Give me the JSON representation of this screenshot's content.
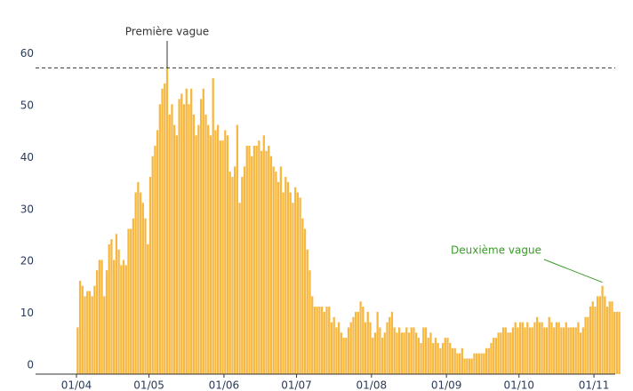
{
  "chart_data": {
    "type": "bar",
    "color": "#f7b842",
    "categories": [
      "01/04",
      null,
      null,
      null,
      null,
      null,
      null,
      null,
      null,
      null,
      null,
      null,
      null,
      null,
      null,
      null,
      null,
      null,
      null,
      null,
      null,
      null,
      null,
      null,
      null,
      null,
      null,
      null,
      null,
      null,
      "01/05",
      null,
      null,
      null,
      null,
      null,
      null,
      null,
      null,
      null,
      null,
      null,
      null,
      null,
      null,
      null,
      null,
      null,
      null,
      null,
      null,
      null,
      null,
      null,
      null,
      null,
      null,
      null,
      null,
      null,
      null,
      "01/06",
      null,
      null,
      null,
      null,
      null,
      null,
      null,
      null,
      null,
      null,
      null,
      null,
      null,
      null,
      null,
      null,
      null,
      null,
      null,
      null,
      null,
      null,
      null,
      null,
      null,
      null,
      null,
      null,
      null,
      "01/07",
      null,
      null,
      null,
      null,
      null,
      null,
      null,
      null,
      null,
      null,
      null,
      null,
      null,
      null,
      null,
      null,
      null,
      null,
      null,
      null,
      null,
      null,
      null,
      null,
      null,
      null,
      null,
      null,
      null,
      null,
      "01/08",
      null,
      null,
      null,
      null,
      null,
      null,
      null,
      null,
      null,
      null,
      null,
      null,
      null,
      null,
      null,
      null,
      null,
      null,
      null,
      null,
      null,
      null,
      null,
      null,
      null,
      null,
      null,
      null,
      null,
      null,
      "01/09",
      null,
      null,
      null,
      null,
      null,
      null,
      null,
      null,
      null,
      null,
      null,
      null,
      null,
      null,
      null,
      null,
      null,
      null,
      null,
      null,
      null,
      null,
      null,
      null,
      null,
      null,
      null,
      null,
      null,
      "01/10",
      null,
      null,
      null,
      null,
      null,
      null,
      null,
      null,
      null,
      null,
      null,
      null,
      null,
      null,
      null,
      null,
      null,
      null,
      null,
      null,
      null,
      null,
      null,
      null,
      null,
      null,
      null,
      null,
      null,
      null,
      "01/11",
      null,
      null,
      null,
      null,
      null,
      null,
      null,
      null,
      null,
      null
    ],
    "values": [
      9,
      18,
      17,
      15,
      16,
      16,
      15,
      17,
      20,
      22,
      22,
      15,
      20,
      25,
      26,
      22,
      27,
      24,
      21,
      22,
      21,
      28,
      28,
      30,
      35,
      37,
      35,
      33,
      30,
      25,
      38,
      42,
      44,
      47,
      52,
      55,
      56,
      59,
      50,
      52,
      48,
      46,
      53,
      54,
      52,
      55,
      52,
      55,
      50,
      46,
      48,
      53,
      55,
      50,
      48,
      46,
      57,
      47,
      48,
      45,
      45,
      47,
      46,
      39,
      38,
      40,
      48,
      33,
      38,
      40,
      44,
      44,
      42,
      44,
      44,
      45,
      43,
      46,
      43,
      44,
      42,
      40,
      39,
      37,
      40,
      35,
      38,
      37,
      35,
      33,
      36,
      35,
      34,
      30,
      28,
      24,
      20,
      15,
      13,
      13,
      13,
      13,
      12,
      13,
      13,
      10,
      11,
      9,
      10,
      8,
      7,
      7,
      9,
      10,
      11,
      12,
      12,
      14,
      13,
      10,
      12,
      10,
      7,
      8,
      12,
      9,
      7,
      8,
      10,
      11,
      12,
      9,
      8,
      9,
      8,
      8,
      9,
      8,
      9,
      9,
      8,
      7,
      6,
      9,
      9,
      7,
      8,
      6,
      7,
      6,
      5,
      6,
      7,
      7,
      6,
      5,
      5,
      4,
      4,
      5,
      3,
      3,
      3,
      3,
      4,
      4,
      4,
      4,
      4,
      5,
      5,
      6,
      7,
      7,
      8,
      8,
      9,
      9,
      8,
      8,
      9,
      10,
      9,
      10,
      10,
      9,
      10,
      9,
      9,
      10,
      11,
      10,
      10,
      9,
      9,
      11,
      10,
      9,
      10,
      10,
      9,
      9,
      10,
      9,
      9,
      9,
      9,
      10,
      8,
      9,
      11,
      11,
      13,
      14,
      13,
      15,
      15,
      17,
      15,
      13,
      14,
      14,
      12,
      12,
      12
    ],
    "ylim": [
      0,
      63
    ],
    "yticks": [
      0,
      10,
      20,
      30,
      40,
      50,
      60
    ],
    "annotations": [
      {
        "text": "Première vague",
        "value": 59,
        "color": "#333333"
      },
      {
        "text": "Deuxième vague",
        "value": 17,
        "color": "#3a9a2a"
      }
    ]
  }
}
